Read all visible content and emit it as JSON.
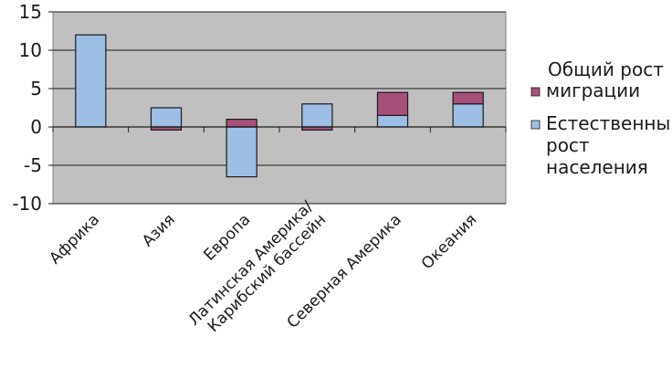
{
  "chart_data": {
    "type": "bar",
    "stacked": true,
    "title": "",
    "xlabel": "",
    "ylabel": "",
    "ylim": [
      -10,
      15
    ],
    "y_ticks": [
      15,
      10,
      5,
      0,
      -5,
      -10
    ],
    "grid": true,
    "legend_position": "right",
    "categories": [
      [
        "Африка"
      ],
      [
        "Азия"
      ],
      [
        "Европа"
      ],
      [
        "Латинская Америка/",
        "Карибский бассейн"
      ],
      [
        "Северная Америка"
      ],
      [
        "Океания"
      ]
    ],
    "series": [
      {
        "name": [
          "Общий рост",
          "миграции"
        ],
        "color": "#a8507a",
        "values": [
          0.0,
          -0.4,
          1.0,
          -0.4,
          3.0,
          1.5
        ]
      },
      {
        "name": [
          "Естественный",
          "рост",
          "населения"
        ],
        "color": "#9dbfe6",
        "values": [
          12.0,
          2.5,
          -6.5,
          3.0,
          1.5,
          3.0
        ]
      }
    ]
  }
}
